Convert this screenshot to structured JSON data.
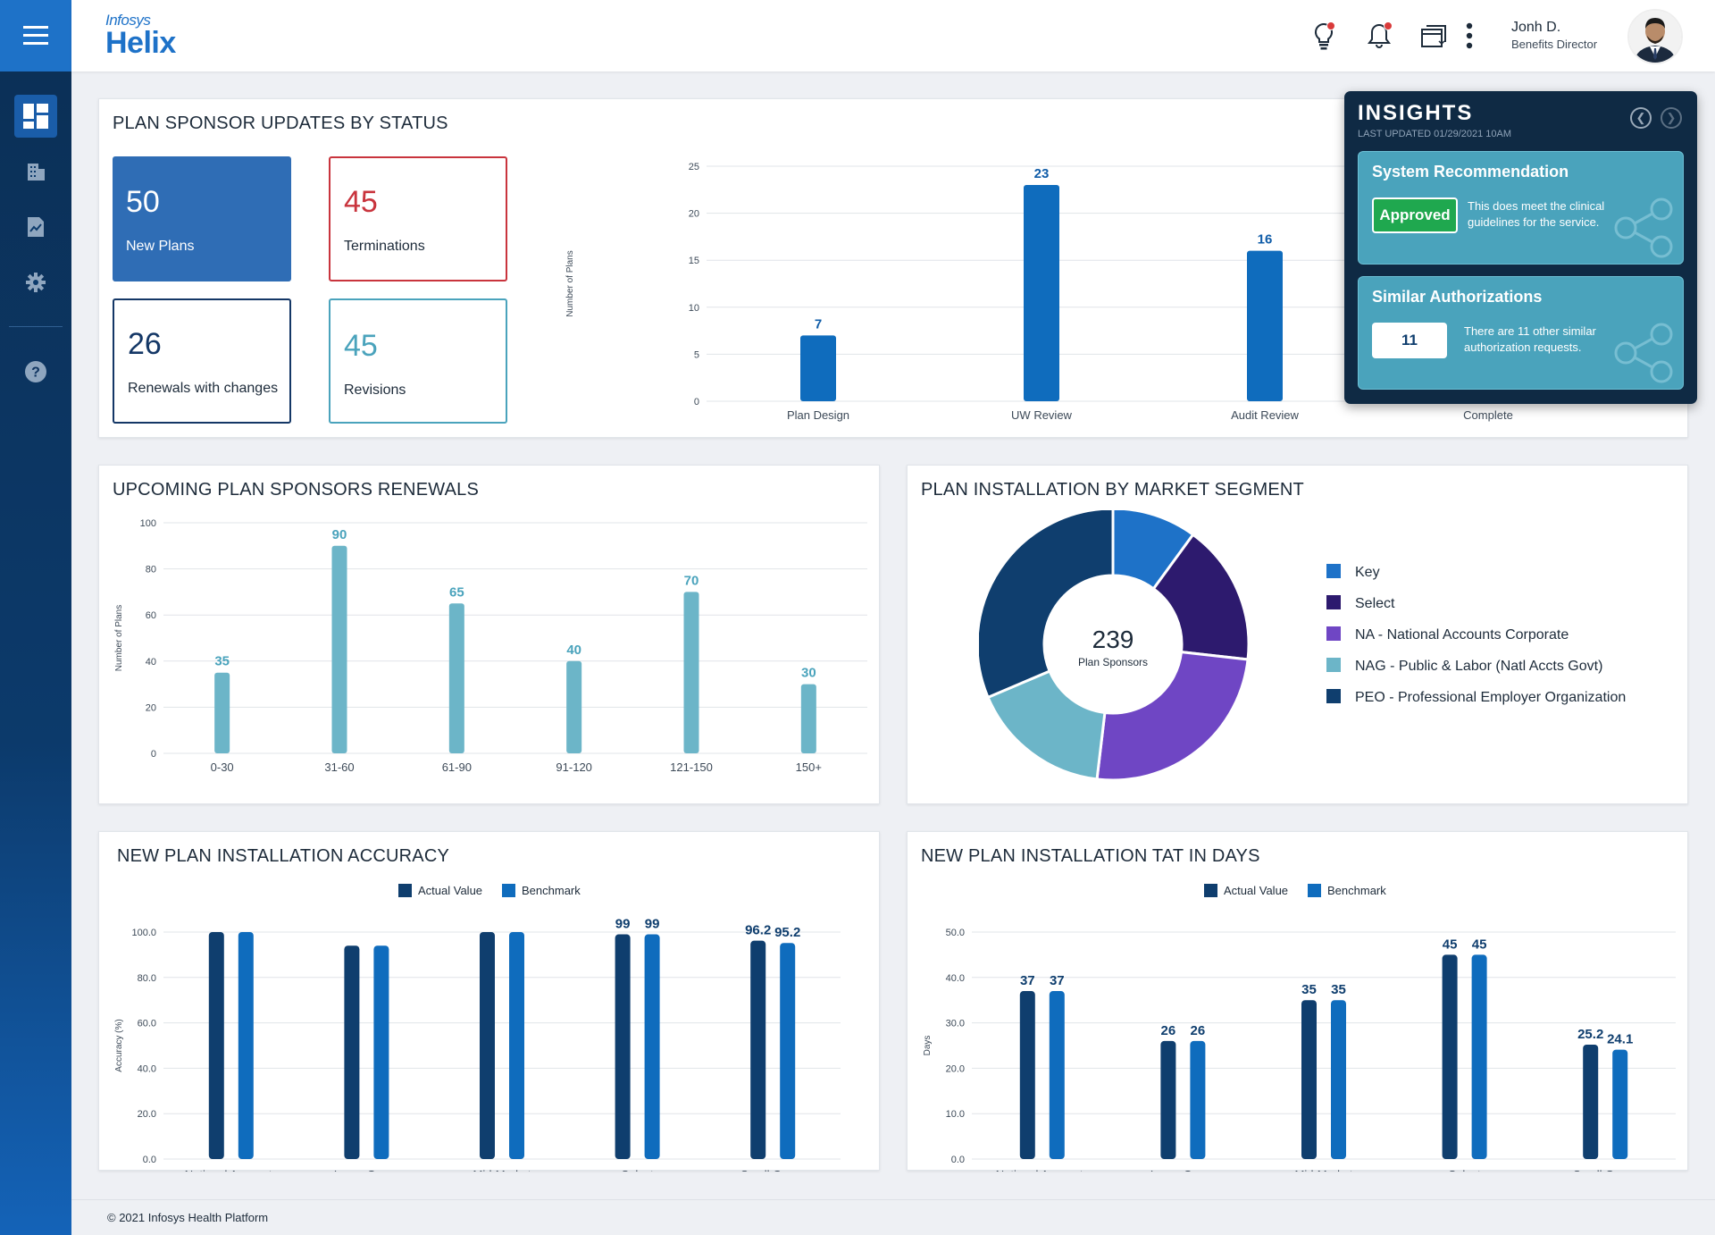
{
  "header": {
    "logo_top": "Infosys",
    "logo_bottom": "Helix",
    "user_name": "Jonh D.",
    "user_role": "Benefits Director"
  },
  "sidebar": {
    "items": [
      {
        "icon": "dashboard-icon",
        "active": true
      },
      {
        "icon": "building-icon",
        "active": false
      },
      {
        "icon": "report-icon",
        "active": false
      },
      {
        "icon": "gear-icon",
        "active": false
      },
      {
        "icon": "help-icon",
        "active": false
      }
    ]
  },
  "status_card": {
    "title": "PLAN SPONSOR UPDATES BY STATUS",
    "stats": [
      {
        "value": "50",
        "label": "New Plans",
        "color": "#2f6db5"
      },
      {
        "value": "45",
        "label": "Terminations",
        "color": "#c9343d"
      },
      {
        "value": "26",
        "label": "Renewals with changes",
        "color": "#143766"
      },
      {
        "value": "45",
        "label": "Revisions",
        "color": "#4aa3bc"
      }
    ]
  },
  "insights": {
    "title": "INSIGHTS",
    "updated": "LAST UPDATED 01/29/2021 10AM",
    "recommendation": {
      "title": "System Recommendation",
      "badge": "Approved",
      "text": "This does meet the clinical guidelines for the service."
    },
    "similar": {
      "title": "Similar Authorizations",
      "count": "11",
      "text": "There are 11 other similar authorization requests."
    }
  },
  "renewals_card": {
    "title": "UPCOMING PLAN SPONSORS RENEWALS"
  },
  "segment_card": {
    "title": "PLAN INSTALLATION BY MARKET SEGMENT"
  },
  "accuracy_card": {
    "title": "NEW PLAN INSTALLATION ACCURACY"
  },
  "tat_card": {
    "title": "NEW PLAN INSTALLATION TAT IN DAYS"
  },
  "footer": {
    "text": "© 2021 Infosys Health Platform"
  },
  "chart_data": [
    {
      "id": "status",
      "type": "bar",
      "categories": [
        "Plan Design",
        "UW Review",
        "Audit Review",
        "Complete"
      ],
      "values": [
        7,
        23,
        16,
        null
      ],
      "value_labels": [
        "7",
        "23",
        "16",
        ""
      ],
      "ylabel": "Number of Plans",
      "ylim": [
        0,
        25
      ],
      "yticks": [
        "0",
        "5",
        "10",
        "15",
        "20",
        "25"
      ],
      "grid": true,
      "color": "#0f6cbd"
    },
    {
      "id": "renewals",
      "type": "bar",
      "categories": [
        "0-30",
        "31-60",
        "61-90",
        "91-120",
        "121-150",
        "150+"
      ],
      "values": [
        35,
        90,
        65,
        40,
        70,
        30
      ],
      "value_labels": [
        "35",
        "90",
        "65",
        "40",
        "70",
        "30"
      ],
      "ylabel": "Number of Plans",
      "ylim": [
        0,
        100
      ],
      "yticks": [
        "0",
        "20",
        "40",
        "60",
        "80",
        "100"
      ],
      "grid": true,
      "color": "#6cb5c8"
    },
    {
      "id": "segment",
      "type": "pie",
      "center_value": "239",
      "center_label": "Plan Sponsors",
      "legend_position": "right",
      "slices": [
        {
          "name": "Key",
          "value": 24,
          "color": "#1e72c8"
        },
        {
          "name": "Select",
          "value": 40,
          "color": "#2d1a6e"
        },
        {
          "name": "NA - National Accounts Corporate",
          "value": 60,
          "color": "#6f46c4"
        },
        {
          "name": "NAG - Public & Labor (Natl Accts Govt)",
          "value": 40,
          "color": "#6cb5c8"
        },
        {
          "name": "PEO - Professional Employer Organization",
          "value": 75,
          "color": "#0f3e6e"
        }
      ]
    },
    {
      "id": "accuracy",
      "type": "bar",
      "categories": [
        "National Accounts",
        "Large Group",
        "Mid-Market",
        "Select",
        "Small Group"
      ],
      "series": [
        {
          "name": "Actual Value",
          "values": [
            100,
            94,
            100,
            99,
            96.2
          ],
          "labels": [
            "",
            "",
            "",
            "99",
            "96.2"
          ],
          "color": "#0f3e6e"
        },
        {
          "name": "Benchmark",
          "values": [
            100,
            94,
            100,
            99,
            95.2
          ],
          "labels": [
            "",
            "",
            "",
            "99",
            "95.2"
          ],
          "color": "#0f6cbd"
        }
      ],
      "ylabel": "Accuracy (%)",
      "ylim": [
        0,
        100
      ],
      "yticks": [
        "0.0",
        "20.0",
        "40.0",
        "60.0",
        "80.0",
        "100.0"
      ],
      "legend_position": "top",
      "grid": true
    },
    {
      "id": "tat",
      "type": "bar",
      "categories": [
        "National Accounts",
        "Large Group",
        "Mid-Market",
        "Select",
        "Small Group"
      ],
      "series": [
        {
          "name": "Actual Value",
          "values": [
            37,
            26,
            35,
            45,
            25.2
          ],
          "labels": [
            "37",
            "26",
            "35",
            "45",
            "25.2"
          ],
          "color": "#0f3e6e"
        },
        {
          "name": "Benchmark",
          "values": [
            37,
            26,
            35,
            45,
            24.1
          ],
          "labels": [
            "37",
            "26",
            "35",
            "45",
            "24.1"
          ],
          "color": "#0f6cbd"
        }
      ],
      "ylabel": "Days",
      "ylim": [
        0,
        50
      ],
      "yticks": [
        "0.0",
        "10.0",
        "20.0",
        "30.0",
        "40.0",
        "50.0"
      ],
      "legend_position": "top",
      "grid": true
    }
  ]
}
